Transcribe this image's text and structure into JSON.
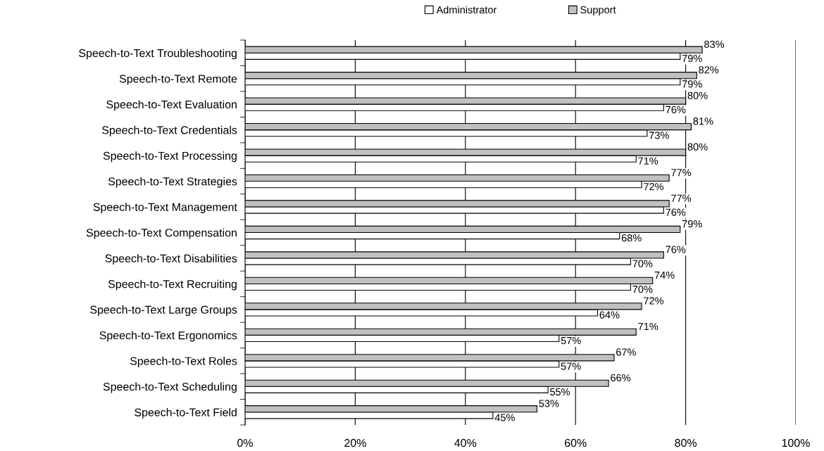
{
  "chart_data": {
    "type": "bar",
    "orientation": "horizontal",
    "categories": [
      "Speech-to-Text Troubleshooting",
      "Speech-to-Text Remote",
      "Speech-to-Text Evaluation",
      "Speech-to-Text Credentials",
      "Speech-to-Text Processing",
      "Speech-to-Text Strategies",
      "Speech-to-Text Management",
      "Speech-to-Text Compensation",
      "Speech-to-Text Disabilities",
      "Speech-to-Text Recruiting",
      "Speech-to-Text Large Groups",
      "Speech-to-Text Ergonomics",
      "Speech-to-Text Roles",
      "Speech-to-Text Scheduling",
      "Speech-to-Text Field"
    ],
    "series": [
      {
        "name": "Administrator",
        "color": "#ffffff",
        "values": [
          79,
          79,
          76,
          73,
          71,
          72,
          76,
          68,
          70,
          70,
          64,
          57,
          57,
          55,
          45
        ],
        "value_labels": [
          "79%",
          "79%",
          "76%",
          "73%",
          "71%",
          "72%",
          "76%",
          "68%",
          "70%",
          "70%",
          "64%",
          "57%",
          "57%",
          "55%",
          "45%"
        ]
      },
      {
        "name": "Support",
        "color": "#c0c0c0",
        "values": [
          83,
          82,
          80,
          81,
          80,
          77,
          77,
          79,
          76,
          74,
          72,
          71,
          67,
          66,
          53
        ],
        "value_labels": [
          "83%",
          "82%",
          "80%",
          "81%",
          "80%",
          "77%",
          "77%",
          "79%",
          "76%",
          "74%",
          "72%",
          "71%",
          "67%",
          "66%",
          "53%"
        ]
      }
    ],
    "xlim": [
      0,
      100
    ],
    "xticks": [
      {
        "value": 0,
        "label": "0%"
      },
      {
        "value": 20,
        "label": "20%"
      },
      {
        "value": 40,
        "label": "40%"
      },
      {
        "value": 60,
        "label": "60%"
      },
      {
        "value": 80,
        "label": "80%"
      },
      {
        "value": 100,
        "label": "100%"
      }
    ],
    "grid": "x",
    "legend": "top"
  }
}
